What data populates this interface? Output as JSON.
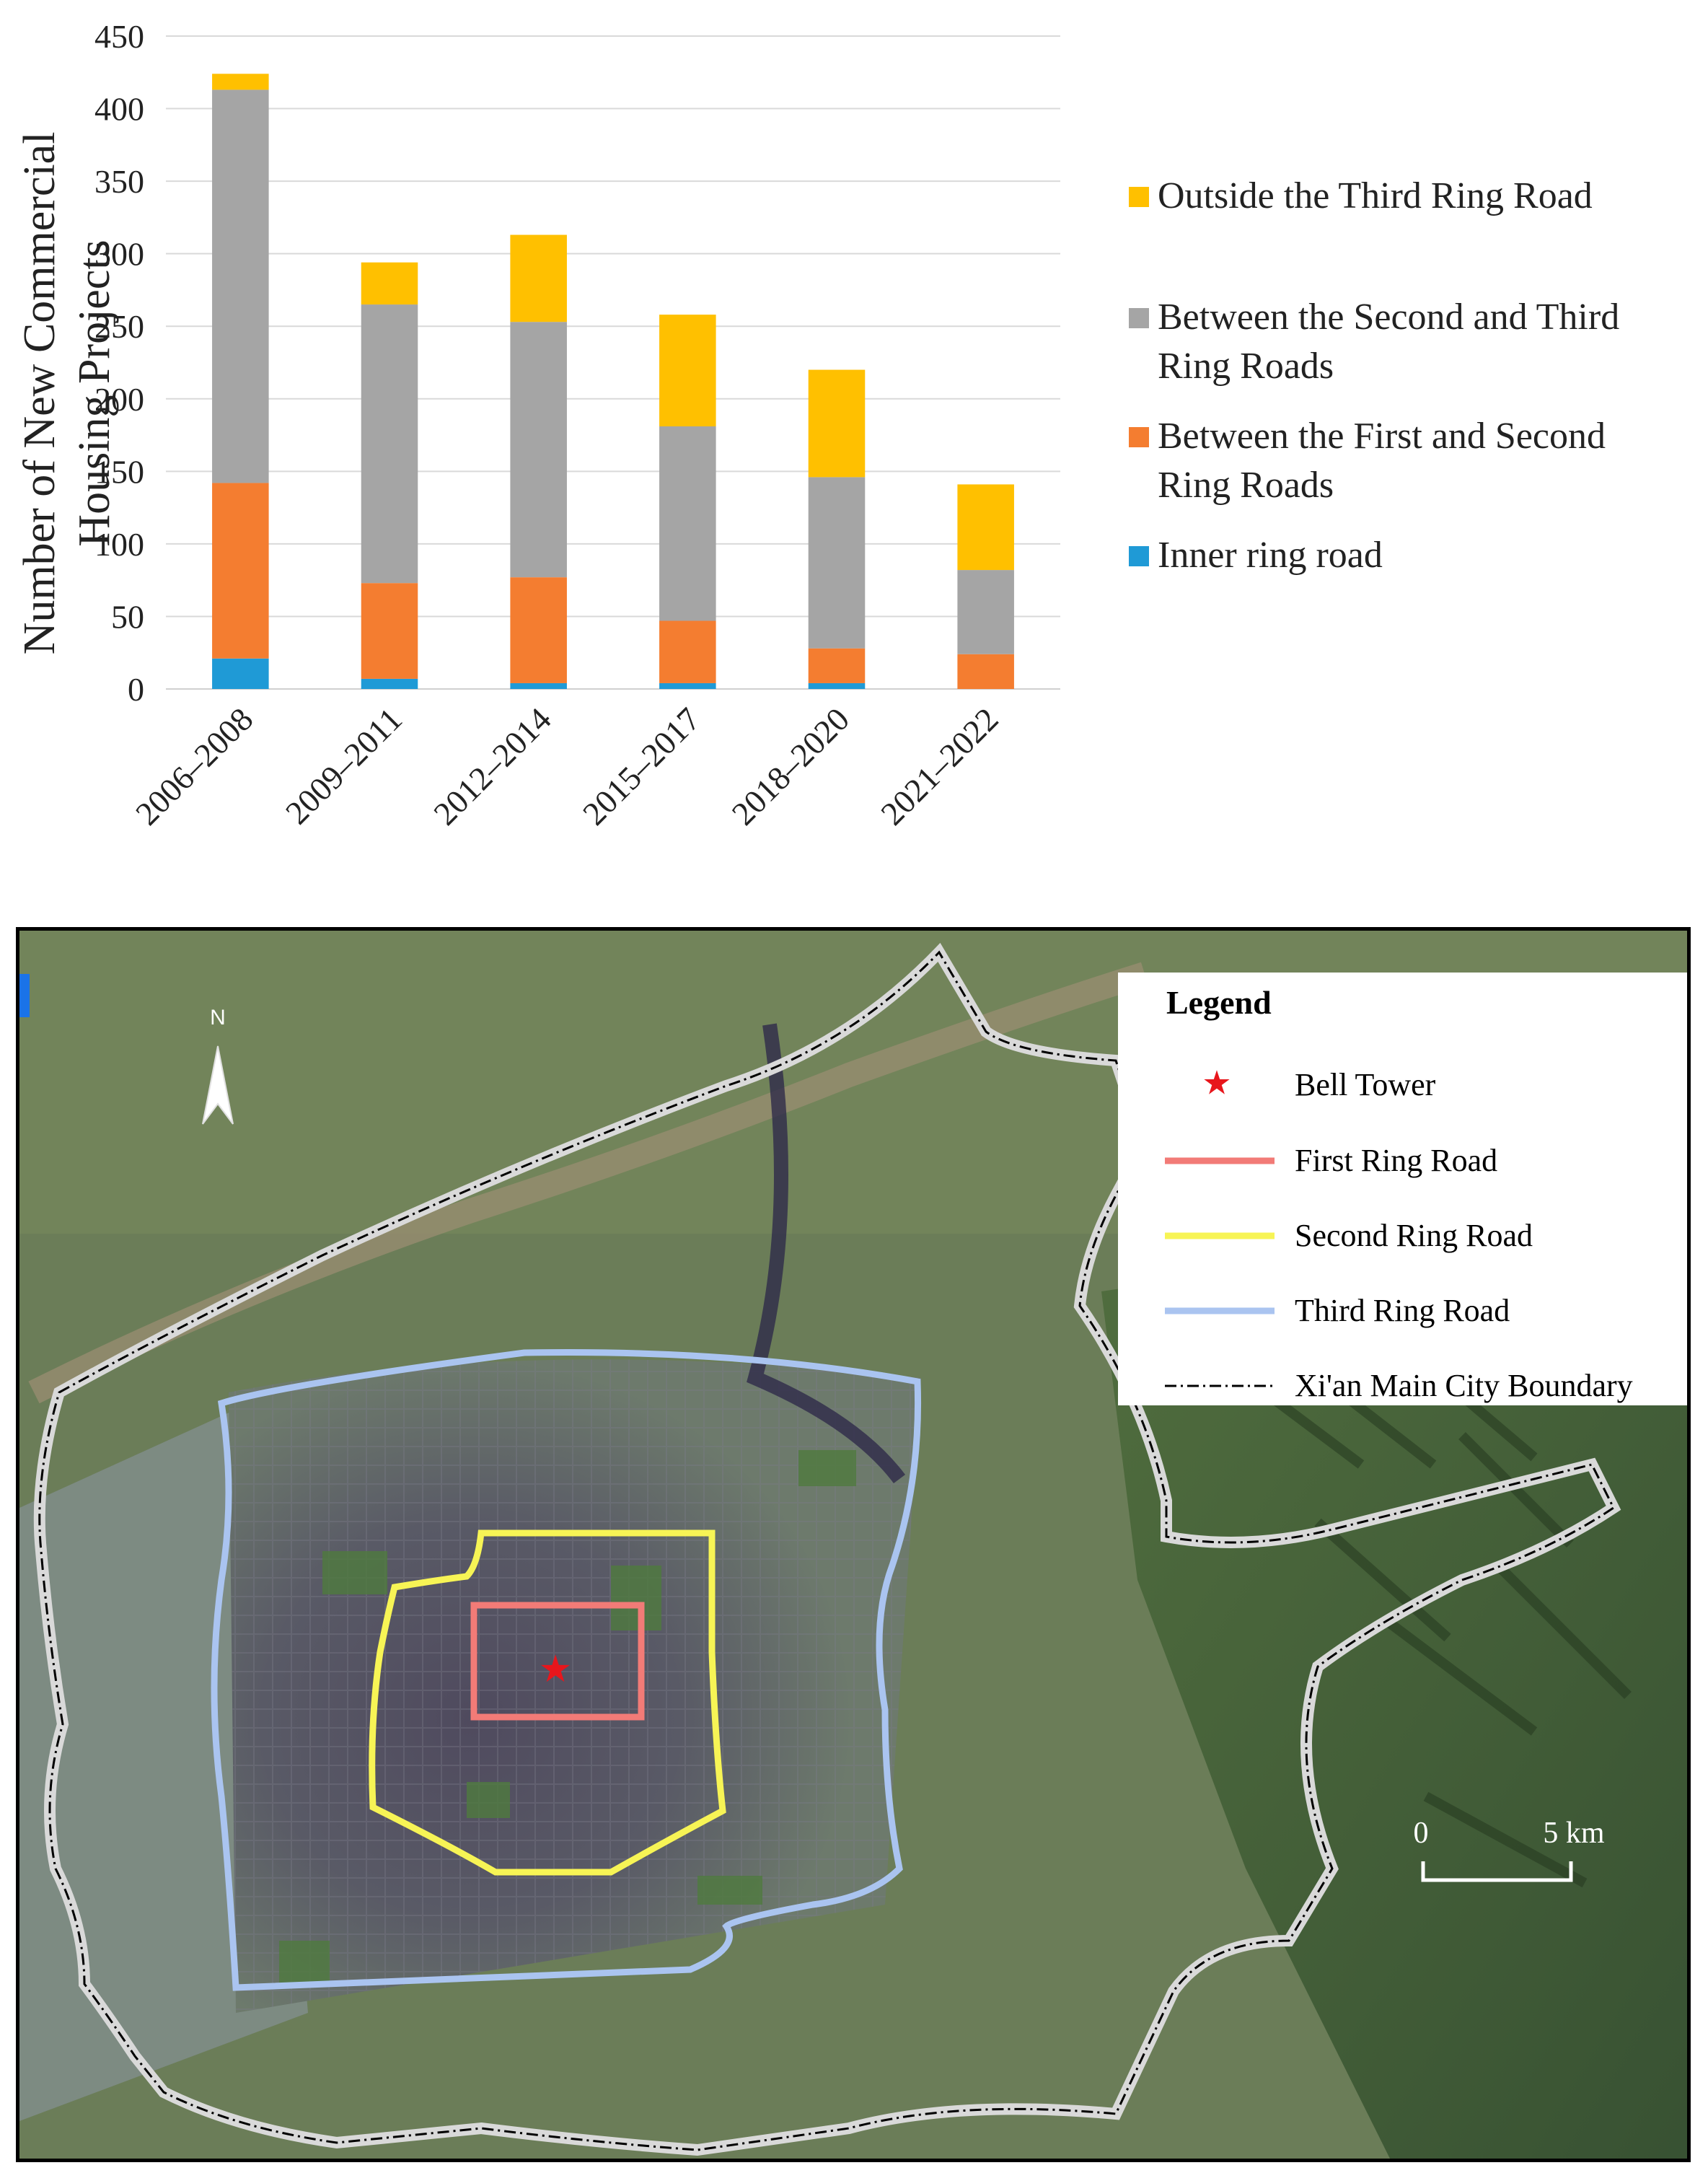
{
  "chart_data": {
    "type": "bar",
    "stacked": true,
    "title": "",
    "xlabel": "",
    "ylabel_lines": [
      "Number of New Commercial",
      "Housing Projects"
    ],
    "ylim": [
      0,
      450
    ],
    "yticks": [
      0,
      50,
      100,
      150,
      200,
      250,
      300,
      350,
      400,
      450
    ],
    "grid": true,
    "legend_position": "right",
    "categories": [
      "2006–2008",
      "2009–2011",
      "2012–2014",
      "2015–2017",
      "2018–2020",
      "2021–2022"
    ],
    "series": [
      {
        "name": "Inner ring road",
        "color": "#1f9ad6",
        "values": [
          21,
          7,
          4,
          4,
          4,
          0
        ]
      },
      {
        "name": "Between the First and Second Ring Roads",
        "legend_lines": [
          "Between the First and Second",
          "Ring Roads"
        ],
        "color": "#f47d30",
        "values": [
          121,
          66,
          73,
          43,
          24,
          24
        ]
      },
      {
        "name": "Between the Second and Third Ring Roads",
        "legend_lines": [
          "Between the Second and Third",
          "Ring Roads"
        ],
        "color": "#a5a5a5",
        "values": [
          271,
          192,
          176,
          134,
          118,
          58
        ]
      },
      {
        "name": "Outside the Third Ring Road",
        "color": "#ffc000",
        "values": [
          11,
          29,
          60,
          77,
          74,
          59
        ]
      }
    ]
  },
  "map": {
    "legend": {
      "title": "Legend",
      "items": [
        {
          "label": "Bell Tower",
          "symbol": "star",
          "color": "#e8161c"
        },
        {
          "label": "First Ring Road",
          "symbol": "line",
          "color": "#f27b77"
        },
        {
          "label": "Second Ring Road",
          "symbol": "line",
          "color": "#f7f455"
        },
        {
          "label": "Third Ring Road",
          "symbol": "line",
          "color": "#aac4f0"
        },
        {
          "label": "Xi'an Main City Boundary",
          "symbol": "dash",
          "color": "#000000"
        }
      ]
    },
    "north_label": "N",
    "scale": {
      "start": "0",
      "end": "5 km"
    }
  }
}
